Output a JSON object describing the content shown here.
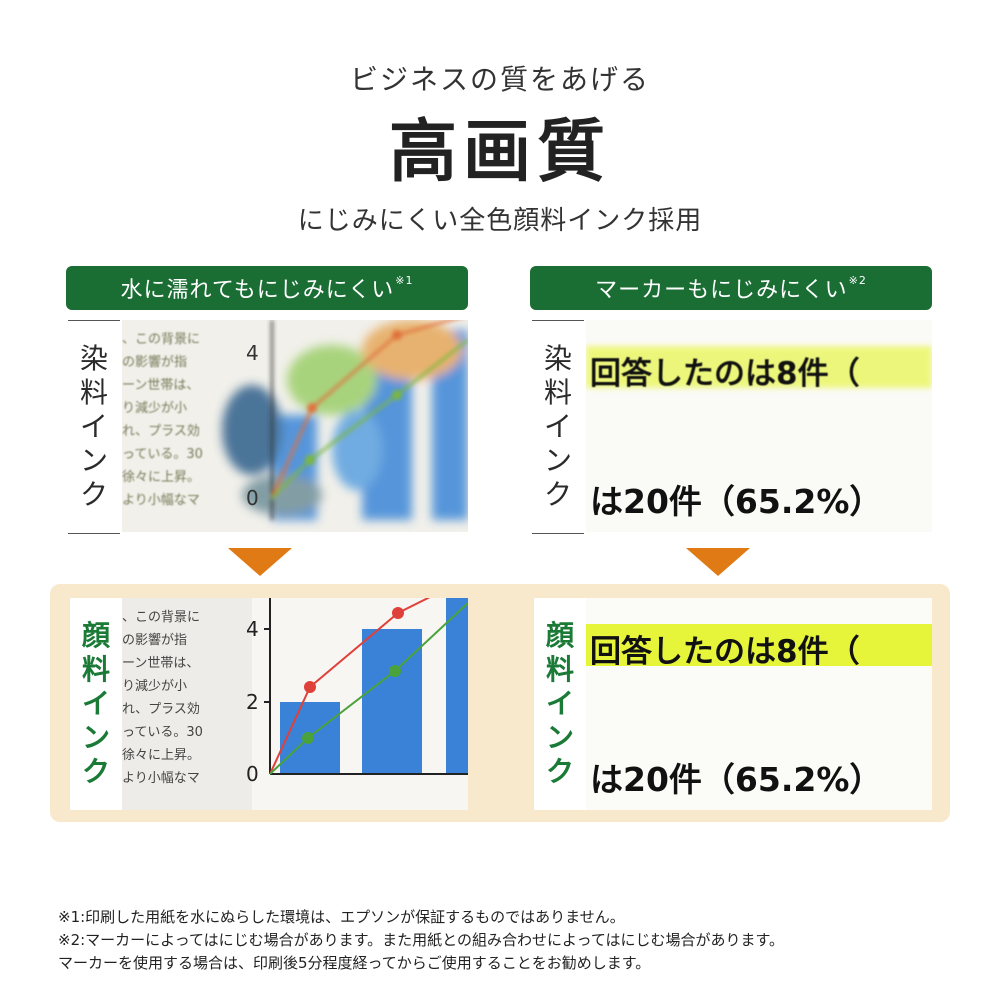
{
  "header": {
    "subtitle": "ビジネスの質をあげる",
    "title": "高画質",
    "tagline": "にじみにくい全色顔料インク採用"
  },
  "left_section": {
    "banner": "水に濡れてもにじみにくい",
    "banner_note": "※1"
  },
  "right_section": {
    "banner": "マーカーもにじみにくい",
    "banner_note": "※2"
  },
  "labels": {
    "dye": [
      "染",
      "料",
      "イ",
      "ン",
      "ク"
    ],
    "pigment": [
      "顔",
      "料",
      "イ",
      "ン",
      "ク"
    ]
  },
  "sample_text": {
    "lines": [
      "、この背景に",
      "の影響が指",
      "ーン世帯は、",
      "り減少が小",
      "れ、プラス効",
      "っている。30",
      "徐々に上昇。",
      "より小幅なマ"
    ]
  },
  "marker_sample": {
    "line1": "回答したのは8件（",
    "line2": "は20件（65.2%）"
  },
  "chart_axis_labels": [
    "4",
    "2",
    "0"
  ],
  "notes": [
    "※1:印刷した用紙を水にぬらした環境は、エプソンが保証するものではありません。",
    "※2:マーカーによってはにじむ場合があります。また用紙との組み合わせによってはにじむ場合があります。",
    "マーカーを使用する場合は、印刷後5分程度経ってからご使用することをお勧めします。"
  ],
  "colors": {
    "banner_green": "#1a6e34",
    "pigment_label_green": "#1a7a36",
    "arrow_orange": "#e07a14",
    "highlight_panel": "#f8e8cc",
    "marker_yellow": "#e6f53a",
    "bar_blue": "#3a82d8",
    "line_red": "#e0403a",
    "line_green": "#4aa23a"
  }
}
